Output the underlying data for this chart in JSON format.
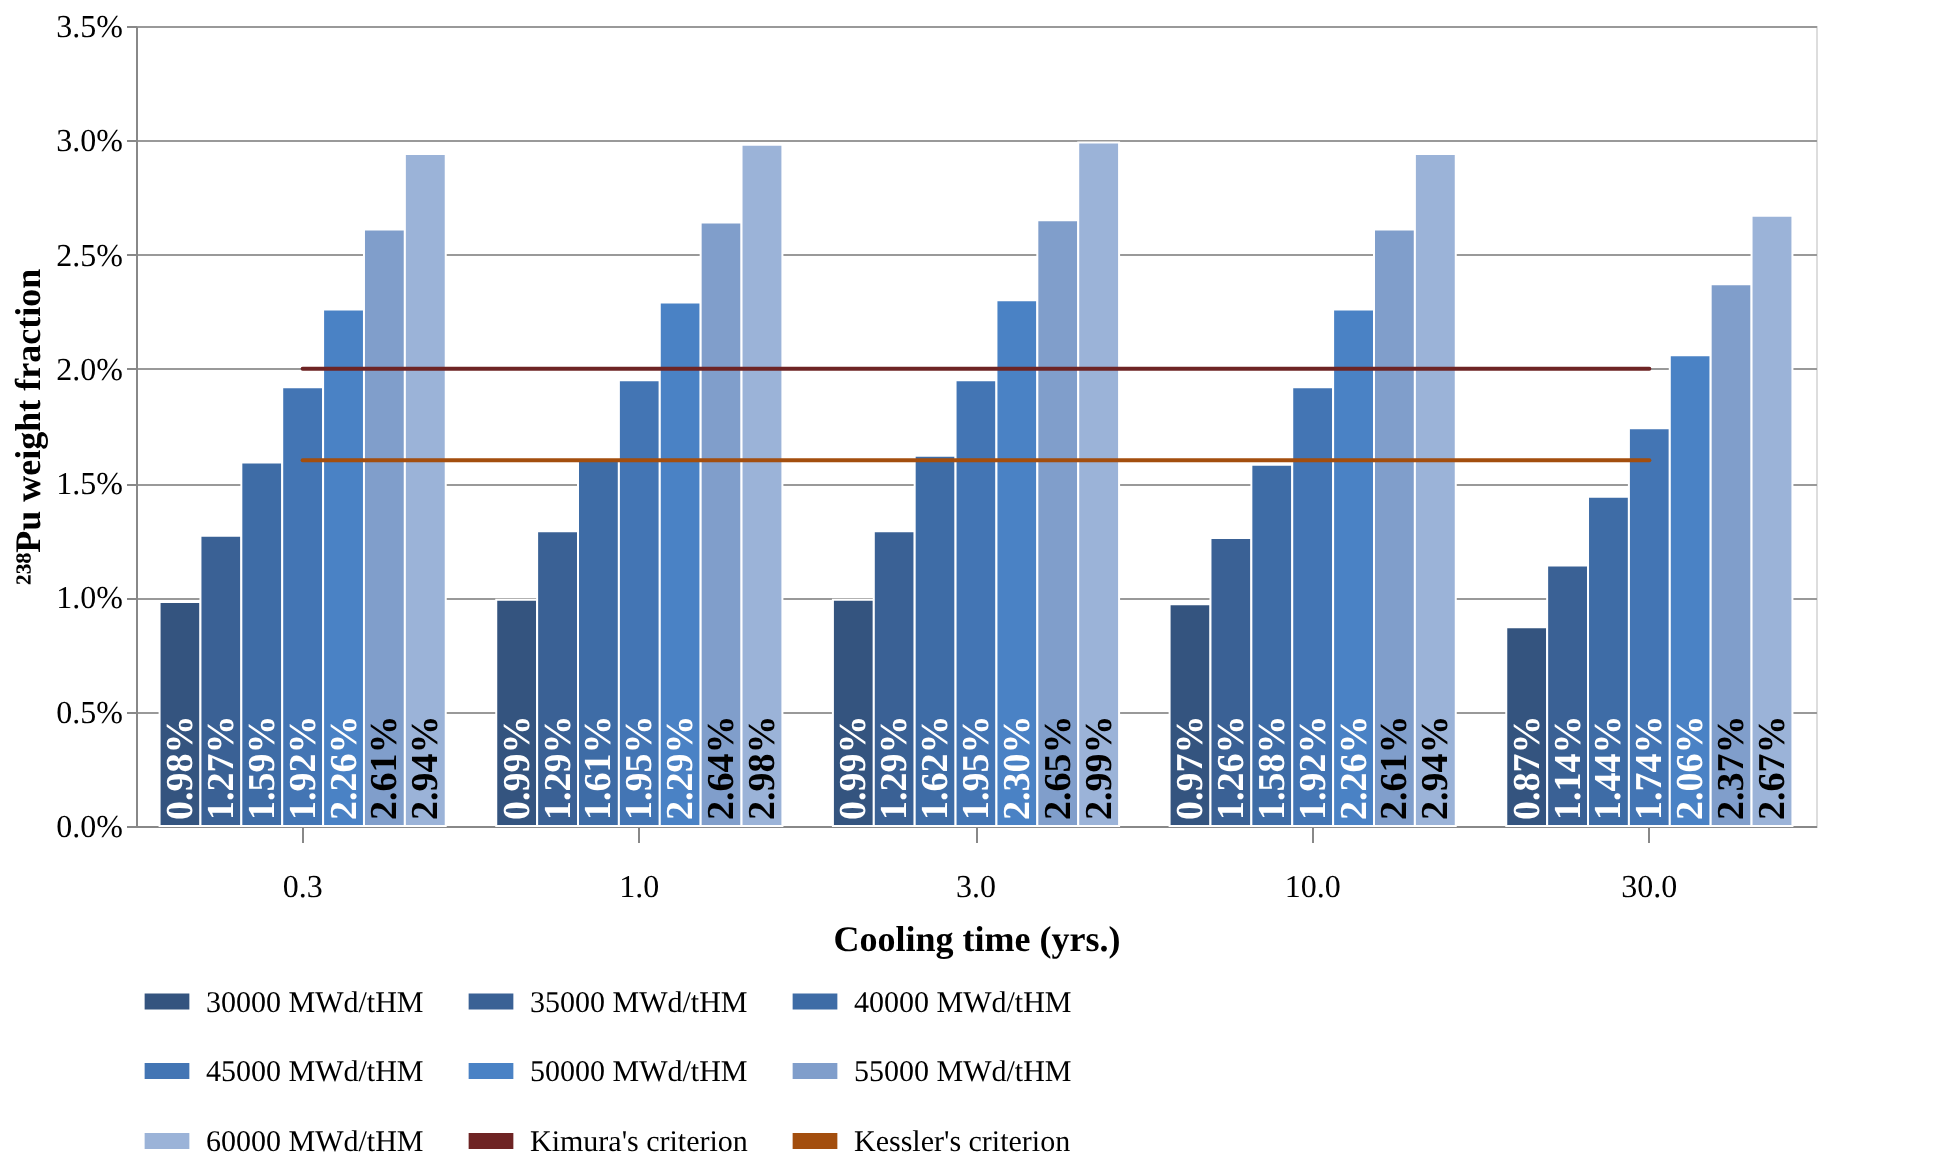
{
  "chart_data": {
    "type": "bar",
    "xlabel": "Cooling time (yrs.)",
    "ylabel": "²³⁸Pu weight fraction",
    "categories": [
      "0.3",
      "1.0",
      "3.0",
      "10.0",
      "30.0"
    ],
    "series": [
      {
        "name": "30000 MWd/tHM",
        "color": "#34547f",
        "values": [
          0.98,
          0.99,
          0.99,
          0.97,
          0.87
        ],
        "value_labels": [
          "0.98%",
          "0.99%",
          "0.99%",
          "0.97%",
          "0.87%"
        ]
      },
      {
        "name": "35000 MWd/tHM",
        "color": "#3a6195",
        "values": [
          1.27,
          1.29,
          1.29,
          1.26,
          1.14
        ],
        "value_labels": [
          "1.27%",
          "1.29%",
          "1.29%",
          "1.26%",
          "1.14%"
        ]
      },
      {
        "name": "40000 MWd/tHM",
        "color": "#3e6ca6",
        "values": [
          1.59,
          1.61,
          1.62,
          1.58,
          1.44
        ],
        "value_labels": [
          "1.59%",
          "1.61%",
          "1.62%",
          "1.58%",
          "1.44%"
        ]
      },
      {
        "name": "45000 MWd/tHM",
        "color": "#4375b4",
        "values": [
          1.92,
          1.95,
          1.95,
          1.92,
          1.74
        ],
        "value_labels": [
          "1.92%",
          "1.95%",
          "1.95%",
          "1.92%",
          "1.74%"
        ]
      },
      {
        "name": "50000 MWd/tHM",
        "color": "#4a82c5",
        "values": [
          2.26,
          2.29,
          2.3,
          2.26,
          2.06
        ],
        "value_labels": [
          "2.26%",
          "2.29%",
          "2.30%",
          "2.26%",
          "2.06%"
        ]
      },
      {
        "name": "55000 MWd/tHM",
        "color": "#809ecb",
        "values": [
          2.61,
          2.64,
          2.65,
          2.61,
          2.37
        ],
        "value_labels": [
          "2.61%",
          "2.64%",
          "2.65%",
          "2.61%",
          "2.37%"
        ]
      },
      {
        "name": "60000 MWd/tHM",
        "color": "#9bb3d8",
        "values": [
          2.94,
          2.98,
          2.99,
          2.94,
          2.67
        ],
        "value_labels": [
          "2.94%",
          "2.98%",
          "2.99%",
          "2.94%",
          "2.67%"
        ]
      },
      {
        "name": "Kimura's criterion",
        "type": "line",
        "color": "#6e2424",
        "values": [
          2.0,
          2.0,
          2.0,
          2.0,
          2.0
        ]
      },
      {
        "name": "Kessler's criterion",
        "type": "line",
        "color": "#a34e0e",
        "values": [
          1.6,
          1.6,
          1.6,
          1.6,
          1.6
        ]
      }
    ],
    "ylim": [
      0,
      3.5
    ],
    "yticks": [
      {
        "value": 0,
        "label": "0.0%"
      },
      {
        "value": 0.5,
        "label": "0.5%"
      },
      {
        "value": 1.0,
        "label": "1.0%"
      },
      {
        "value": 1.5,
        "label": "1.5%"
      },
      {
        "value": 2.0,
        "label": "2.0%"
      },
      {
        "value": 2.5,
        "label": "2.5%"
      },
      {
        "value": 3.0,
        "label": "3.0%"
      },
      {
        "value": 3.5,
        "label": "3.5%"
      }
    ],
    "grid": "y",
    "legend": "bottom"
  }
}
